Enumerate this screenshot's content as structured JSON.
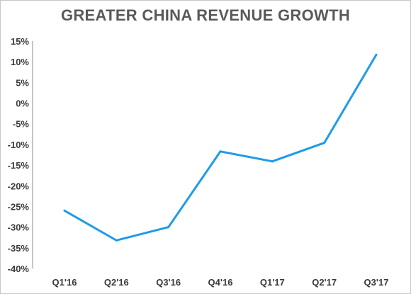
{
  "chart_data": {
    "type": "line",
    "title": "GREATER CHINA REVENUE GROWTH",
    "xlabel": "",
    "ylabel": "",
    "categories": [
      "Q1'16",
      "Q2'16",
      "Q3'16",
      "Q4'16",
      "Q1'17",
      "Q2'17",
      "Q3'17"
    ],
    "series": [
      {
        "values": [
          -26,
          -33.2,
          -30,
          -11.7,
          -14.1,
          -9.6,
          11.7
        ],
        "color": "#1f9be8"
      }
    ],
    "ylim": [
      -40,
      15
    ],
    "yticks": [
      15,
      10,
      5,
      0,
      -5,
      -10,
      -15,
      -20,
      -25,
      -30,
      -35,
      -40
    ],
    "ytick_format": "percent",
    "grid": false,
    "legend": "none"
  }
}
